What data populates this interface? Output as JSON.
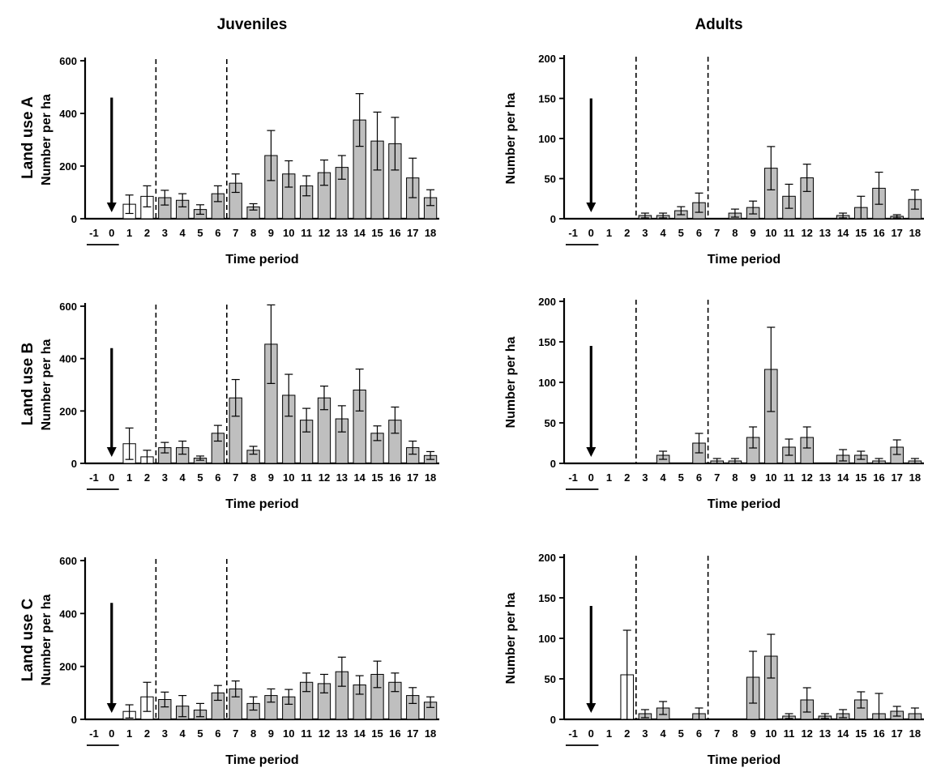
{
  "column_titles": [
    "Juveniles",
    "Adults"
  ],
  "row_labels": [
    "Land use A",
    "Land use B",
    "Land use C"
  ],
  "colors": {
    "pre_bar": "#ffffff",
    "post_bar": "#bfbfbf",
    "outline": "#000000"
  },
  "chart_data": [
    {
      "type": "bar",
      "column": "Juveniles",
      "row": "Land use A",
      "categories": [
        "-1",
        "0",
        "1",
        "2",
        "3",
        "4",
        "5",
        "6",
        "7",
        "8",
        "9",
        "10",
        "11",
        "12",
        "13",
        "14",
        "15",
        "16",
        "17",
        "18"
      ],
      "values": [
        0,
        0,
        55,
        85,
        80,
        70,
        35,
        95,
        135,
        45,
        240,
        170,
        125,
        175,
        195,
        375,
        295,
        285,
        155,
        80
      ],
      "errors": [
        0,
        0,
        35,
        40,
        28,
        25,
        18,
        30,
        35,
        12,
        95,
        50,
        38,
        48,
        45,
        100,
        110,
        100,
        75,
        30
      ],
      "bar_fill": [
        "none",
        "none",
        "white",
        "white",
        "grey",
        "grey",
        "grey",
        "grey",
        "grey",
        "grey",
        "grey",
        "grey",
        "grey",
        "grey",
        "grey",
        "grey",
        "grey",
        "grey",
        "grey",
        "grey"
      ],
      "xlabel": "Time period",
      "ylabel": "Number per ha",
      "ylim": [
        0,
        600
      ],
      "yticks": [
        0,
        200,
        400,
        600
      ],
      "dashed_lines_after": [
        "2",
        "6"
      ],
      "arrow_at": "0",
      "arrow_top": 460,
      "underline": [
        "-1",
        "0"
      ]
    },
    {
      "type": "bar",
      "column": "Adults",
      "row": "Land use A",
      "categories": [
        "-1",
        "0",
        "1",
        "2",
        "3",
        "4",
        "5",
        "6",
        "7",
        "8",
        "9",
        "10",
        "11",
        "12",
        "13",
        "14",
        "15",
        "16",
        "17",
        "18"
      ],
      "values": [
        0,
        0,
        0,
        0,
        4,
        4,
        10,
        20,
        0,
        7,
        14,
        63,
        28,
        51,
        0,
        4,
        14,
        38,
        3,
        24
      ],
      "errors": [
        0,
        0,
        0,
        0,
        3,
        3,
        5,
        12,
        0,
        5,
        8,
        27,
        15,
        17,
        0,
        3,
        14,
        20,
        2,
        12
      ],
      "bar_fill": [
        "none",
        "none",
        "none",
        "none",
        "grey",
        "grey",
        "grey",
        "grey",
        "none",
        "grey",
        "grey",
        "grey",
        "grey",
        "grey",
        "none",
        "grey",
        "grey",
        "grey",
        "grey",
        "grey"
      ],
      "xlabel": "Time period",
      "ylabel": "Number per ha",
      "ylim": [
        0,
        200
      ],
      "yticks": [
        0,
        50,
        100,
        150,
        200
      ],
      "dashed_lines_after": [
        "2",
        "6"
      ],
      "arrow_at": "0",
      "arrow_top": 150,
      "underline": [
        "-1",
        "0"
      ]
    },
    {
      "type": "bar",
      "column": "Juveniles",
      "row": "Land use B",
      "categories": [
        "-1",
        "0",
        "1",
        "2",
        "3",
        "4",
        "5",
        "6",
        "7",
        "8",
        "9",
        "10",
        "11",
        "12",
        "13",
        "14",
        "15",
        "16",
        "17",
        "18"
      ],
      "values": [
        0,
        0,
        75,
        25,
        60,
        60,
        20,
        115,
        250,
        50,
        455,
        260,
        165,
        250,
        170,
        280,
        115,
        165,
        60,
        30
      ],
      "errors": [
        0,
        0,
        60,
        25,
        20,
        25,
        8,
        30,
        70,
        15,
        150,
        80,
        45,
        45,
        50,
        80,
        28,
        50,
        25,
        15
      ],
      "bar_fill": [
        "none",
        "none",
        "white",
        "white",
        "grey",
        "grey",
        "grey",
        "grey",
        "grey",
        "grey",
        "grey",
        "grey",
        "grey",
        "grey",
        "grey",
        "grey",
        "grey",
        "grey",
        "grey",
        "grey"
      ],
      "xlabel": "Time period",
      "ylabel": "Number per ha",
      "ylim": [
        0,
        600
      ],
      "yticks": [
        0,
        200,
        400,
        600
      ],
      "dashed_lines_after": [
        "2",
        "6"
      ],
      "arrow_at": "0",
      "arrow_top": 440,
      "underline": [
        "-1",
        "0"
      ]
    },
    {
      "type": "bar",
      "column": "Adults",
      "row": "Land use B",
      "categories": [
        "-1",
        "0",
        "1",
        "2",
        "3",
        "4",
        "5",
        "6",
        "7",
        "8",
        "9",
        "10",
        "11",
        "12",
        "13",
        "14",
        "15",
        "16",
        "17",
        "18"
      ],
      "values": [
        0,
        0,
        0,
        0,
        0,
        10,
        0,
        25,
        3,
        3,
        32,
        116,
        20,
        32,
        0,
        10,
        10,
        3,
        20,
        3
      ],
      "errors": [
        0,
        0,
        0,
        0,
        0,
        5,
        0,
        12,
        3,
        3,
        13,
        52,
        10,
        13,
        0,
        7,
        5,
        3,
        9,
        3
      ],
      "bar_fill": [
        "none",
        "none",
        "none",
        "none",
        "none",
        "grey",
        "none",
        "grey",
        "grey",
        "grey",
        "grey",
        "grey",
        "grey",
        "grey",
        "none",
        "grey",
        "grey",
        "grey",
        "grey",
        "grey"
      ],
      "xlabel": "Time period",
      "ylabel": "Number per ha",
      "ylim": [
        0,
        200
      ],
      "yticks": [
        0,
        50,
        100,
        150,
        200
      ],
      "dashed_lines_after": [
        "2",
        "6"
      ],
      "arrow_at": "0",
      "arrow_top": 145,
      "underline": [
        "-1",
        "0"
      ]
    },
    {
      "type": "bar",
      "column": "Juveniles",
      "row": "Land use C",
      "categories": [
        "-1",
        "0",
        "1",
        "2",
        "3",
        "4",
        "5",
        "6",
        "7",
        "8",
        "9",
        "10",
        "11",
        "12",
        "13",
        "14",
        "15",
        "16",
        "17",
        "18"
      ],
      "values": [
        0,
        0,
        30,
        85,
        75,
        50,
        35,
        100,
        115,
        60,
        90,
        85,
        140,
        135,
        180,
        130,
        170,
        140,
        90,
        65
      ],
      "errors": [
        0,
        0,
        25,
        55,
        28,
        40,
        25,
        28,
        30,
        25,
        25,
        28,
        35,
        35,
        55,
        35,
        50,
        35,
        30,
        20
      ],
      "bar_fill": [
        "none",
        "none",
        "white",
        "white",
        "grey",
        "grey",
        "grey",
        "grey",
        "grey",
        "grey",
        "grey",
        "grey",
        "grey",
        "grey",
        "grey",
        "grey",
        "grey",
        "grey",
        "grey",
        "grey"
      ],
      "xlabel": "Time period",
      "ylabel": "Number per ha",
      "ylim": [
        0,
        600
      ],
      "yticks": [
        0,
        200,
        400,
        600
      ],
      "dashed_lines_after": [
        "2",
        "6"
      ],
      "arrow_at": "0",
      "arrow_top": 440,
      "underline": [
        "-1",
        "0"
      ]
    },
    {
      "type": "bar",
      "column": "Adults",
      "row": "Land use C",
      "categories": [
        "-1",
        "0",
        "1",
        "2",
        "3",
        "4",
        "5",
        "6",
        "7",
        "8",
        "9",
        "10",
        "11",
        "12",
        "13",
        "14",
        "15",
        "16",
        "17",
        "18"
      ],
      "values": [
        0,
        0,
        0,
        55,
        7,
        14,
        0,
        7,
        0,
        0,
        52,
        78,
        4,
        24,
        4,
        7,
        24,
        7,
        10,
        7
      ],
      "errors": [
        0,
        0,
        0,
        55,
        5,
        8,
        0,
        7,
        0,
        0,
        32,
        27,
        3,
        15,
        3,
        5,
        10,
        25,
        6,
        7
      ],
      "bar_fill": [
        "none",
        "none",
        "none",
        "white",
        "grey",
        "grey",
        "none",
        "grey",
        "none",
        "none",
        "grey",
        "grey",
        "grey",
        "grey",
        "grey",
        "grey",
        "grey",
        "grey",
        "grey",
        "grey"
      ],
      "xlabel": "Time period",
      "ylabel": "Number per ha",
      "ylim": [
        0,
        200
      ],
      "yticks": [
        0,
        50,
        100,
        150,
        200
      ],
      "dashed_lines_after": [
        "2",
        "6"
      ],
      "arrow_at": "0",
      "arrow_top": 140,
      "underline": [
        "-1",
        "0"
      ]
    }
  ]
}
